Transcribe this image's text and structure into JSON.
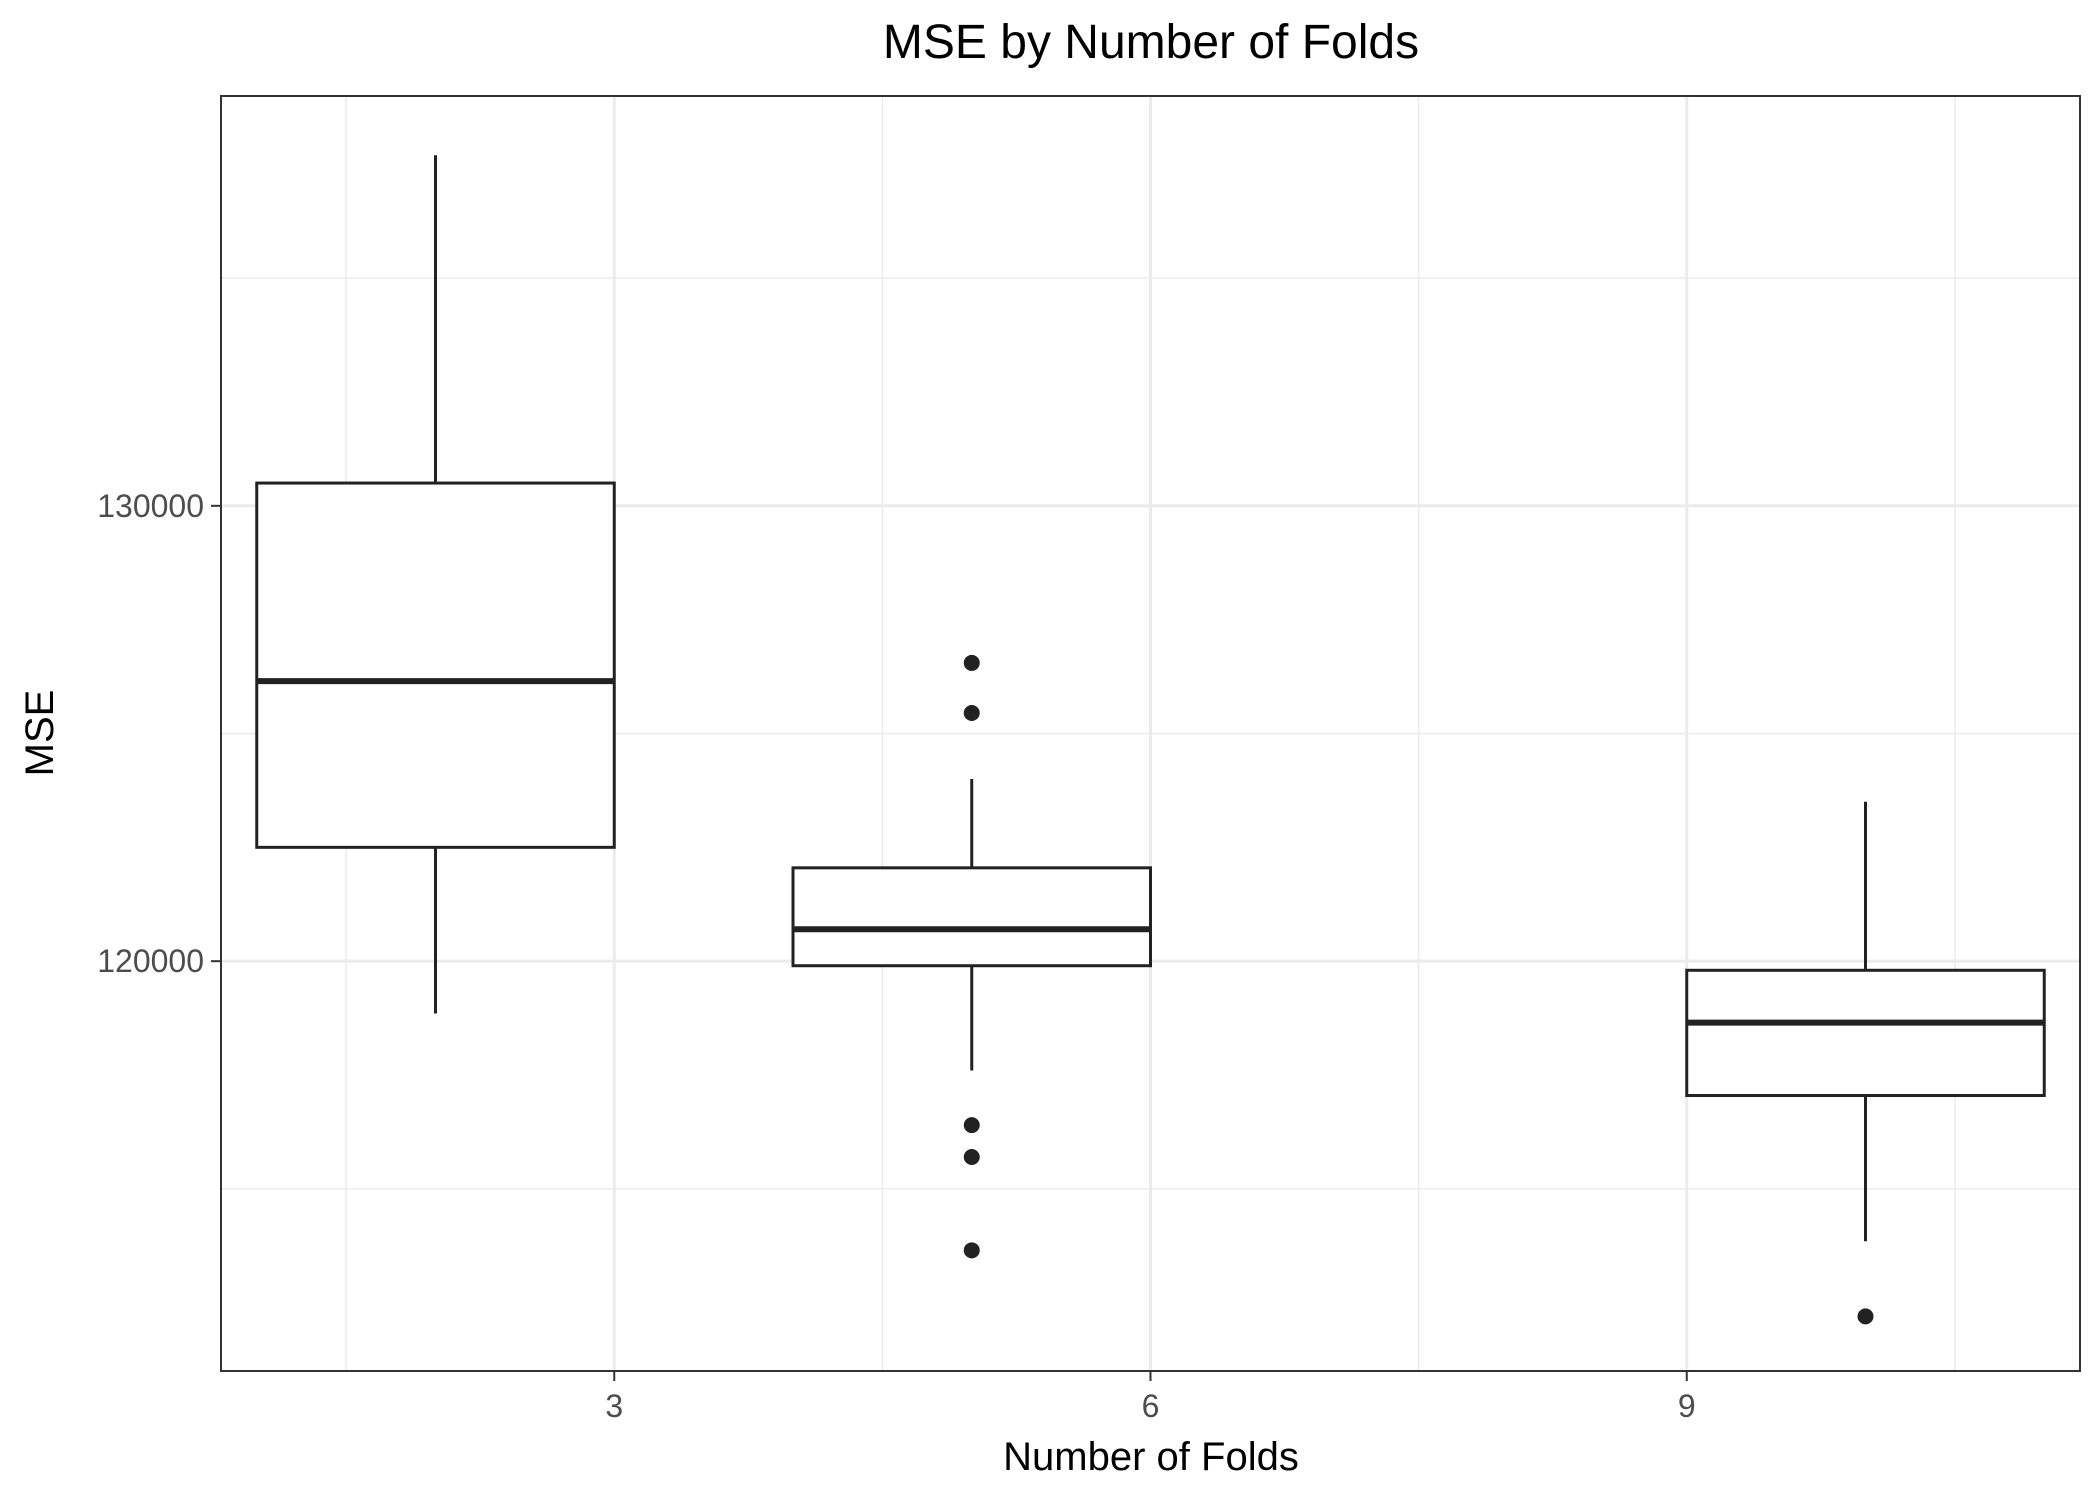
{
  "chart_data": {
    "type": "box",
    "title": "MSE by Number of Folds",
    "xlabel": "Number of Folds",
    "ylabel": "MSE",
    "x_ticks": [
      3,
      6,
      9
    ],
    "y_ticks": [
      120000,
      130000
    ],
    "xlim": [
      0.8,
      11.2
    ],
    "ylim": [
      111000,
      139000
    ],
    "grid": true,
    "boxes": [
      {
        "x": 2,
        "whisker_low": 118850,
        "q1": 122500,
        "median": 126150,
        "q3": 130500,
        "whisker_high": 137700,
        "outliers": []
      },
      {
        "x": 5,
        "whisker_low": 117600,
        "q1": 119900,
        "median": 120700,
        "q3": 122050,
        "whisker_high": 124000,
        "outliers": [
          126550,
          125450,
          116400,
          115700,
          113650
        ]
      },
      {
        "x": 10,
        "whisker_low": 113850,
        "q1": 117050,
        "median": 118650,
        "q3": 119800,
        "whisker_high": 123500,
        "outliers": [
          112200
        ]
      }
    ],
    "colors": {
      "stroke": "#222222",
      "grid": "#ebebeb",
      "panel_border": "#333333",
      "outlier": "#222222"
    }
  }
}
